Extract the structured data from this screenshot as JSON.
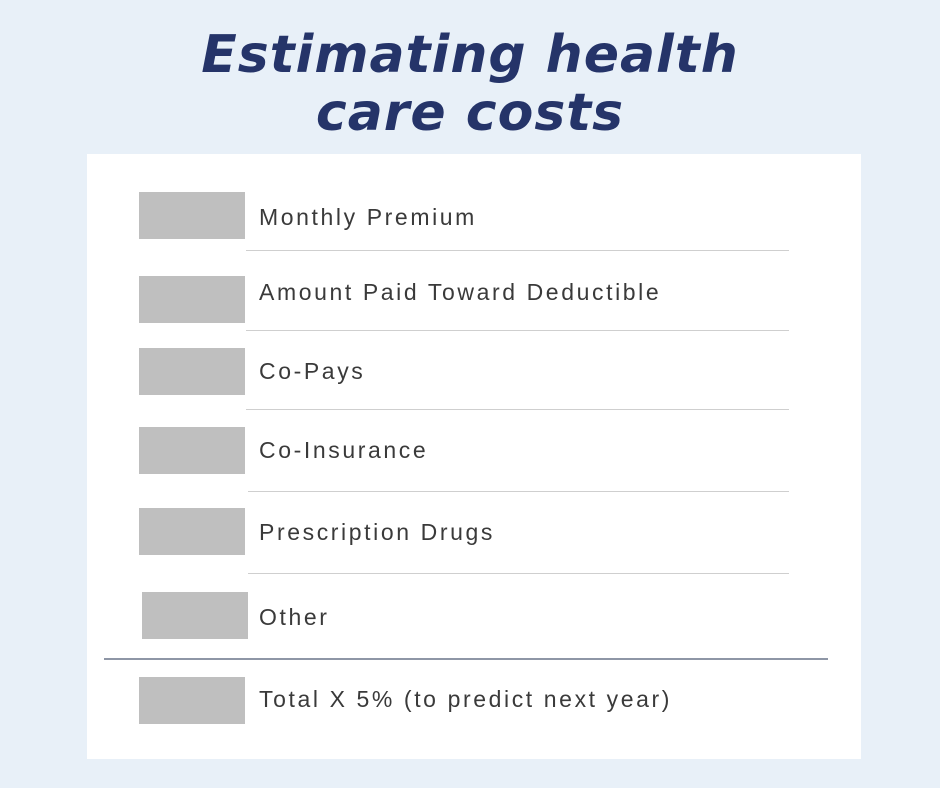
{
  "title": {
    "line1": "Estimating health",
    "line2": "care costs"
  },
  "rows": [
    {
      "label": "Monthly Premium"
    },
    {
      "label": "Amount Paid Toward Deductible"
    },
    {
      "label": "Co-Pays"
    },
    {
      "label": "Co-Insurance"
    },
    {
      "label": "Prescription Drugs"
    },
    {
      "label": "Other"
    }
  ],
  "total": {
    "label": "Total X 5% (to predict next year)"
  },
  "colors": {
    "background": "#e8f0f8",
    "title": "#253469",
    "card": "#ffffff",
    "input_box": "#bfbfbf",
    "text": "#3a3a3a"
  }
}
